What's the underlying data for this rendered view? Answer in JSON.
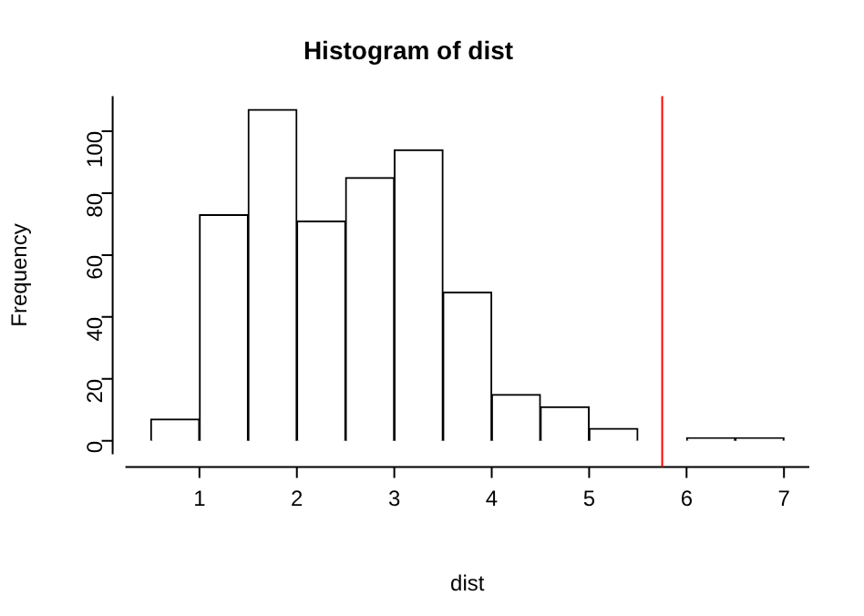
{
  "chart_data": {
    "type": "histogram",
    "title": "Histogram of dist",
    "xlabel": "dist",
    "ylabel": "Frequency",
    "bins": [
      0.5,
      1,
      1.5,
      2,
      2.5,
      3,
      3.5,
      4,
      4.5,
      5,
      5.5,
      6,
      6.5,
      7
    ],
    "values": [
      7,
      73,
      107,
      71,
      85,
      94,
      48,
      15,
      11,
      4,
      0,
      1,
      1
    ],
    "color": "#ffffff",
    "xlim": [
      0.24,
      7.26
    ],
    "ylim": [
      -4.3,
      111.3
    ],
    "xticks": [
      1,
      2,
      3,
      4,
      5,
      6,
      7
    ],
    "yticks": [
      0,
      20,
      40,
      60,
      80,
      100
    ],
    "ref_lines": [
      {
        "axis": "x",
        "value": 5.75,
        "color": "#ff0000"
      }
    ],
    "grid": false,
    "legend": false
  }
}
